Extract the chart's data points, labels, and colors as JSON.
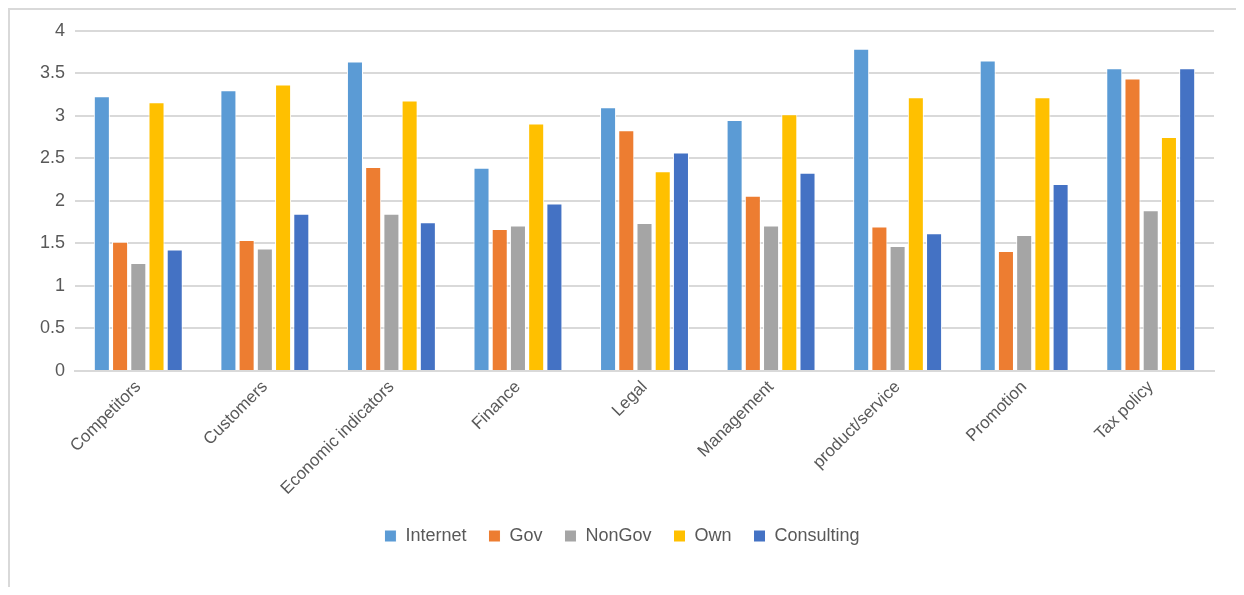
{
  "chart_data": {
    "type": "bar",
    "categories": [
      "Competitors",
      "Customers",
      "Economic indicators",
      "Finance",
      "Legal",
      "Management",
      "product/service",
      "Promotion",
      "Tax policy"
    ],
    "series": [
      {
        "name": "Internet",
        "color": "#5b9bd5",
        "values": [
          3.23,
          3.3,
          3.64,
          2.39,
          3.1,
          2.95,
          3.79,
          3.65,
          3.56
        ]
      },
      {
        "name": "Gov",
        "color": "#ed7d31",
        "values": [
          1.52,
          1.54,
          2.4,
          1.67,
          2.83,
          2.06,
          1.7,
          1.41,
          3.44
        ]
      },
      {
        "name": "NonGov",
        "color": "#a5a5a5",
        "values": [
          1.27,
          1.44,
          1.85,
          1.71,
          1.74,
          1.71,
          1.47,
          1.6,
          1.89
        ]
      },
      {
        "name": "Own",
        "color": "#ffc000",
        "values": [
          3.16,
          3.37,
          3.18,
          2.91,
          2.35,
          3.02,
          3.22,
          3.22,
          2.75
        ]
      },
      {
        "name": "Consulting",
        "color": "#4472c4",
        "values": [
          1.43,
          1.85,
          1.75,
          1.97,
          2.57,
          2.33,
          1.62,
          2.2,
          3.56
        ]
      }
    ],
    "ylim": [
      0,
      4
    ],
    "yticks": [
      0,
      0.5,
      1,
      1.5,
      2,
      2.5,
      3,
      3.5,
      4
    ],
    "grid": "y",
    "legend": "bottom"
  }
}
